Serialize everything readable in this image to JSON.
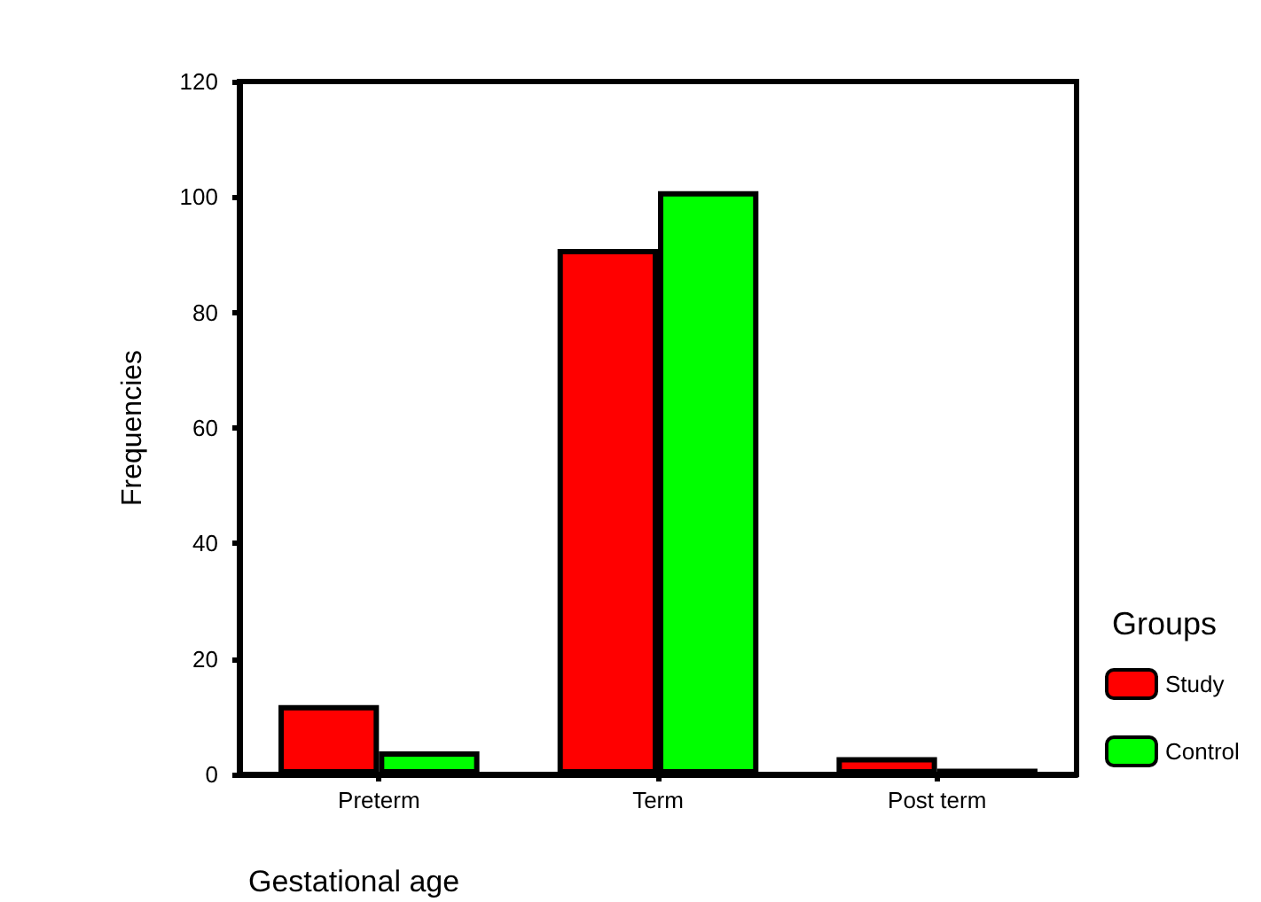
{
  "chart_data": {
    "type": "bar",
    "xlabel": "Gestational age",
    "ylabel": "Frequencies",
    "legend_title": "Groups",
    "legend": "right",
    "grid": false,
    "categories": [
      "Preterm",
      "Term",
      "Post term"
    ],
    "series": [
      {
        "name": "Study",
        "color": "#ff0000",
        "values": [
          12,
          91,
          3
        ]
      },
      {
        "name": "Control",
        "color": "#00ff00",
        "values": [
          4,
          101,
          1
        ]
      }
    ],
    "ylim": [
      0,
      120
    ],
    "yticks": [
      0,
      20,
      40,
      60,
      80,
      100,
      120
    ]
  }
}
